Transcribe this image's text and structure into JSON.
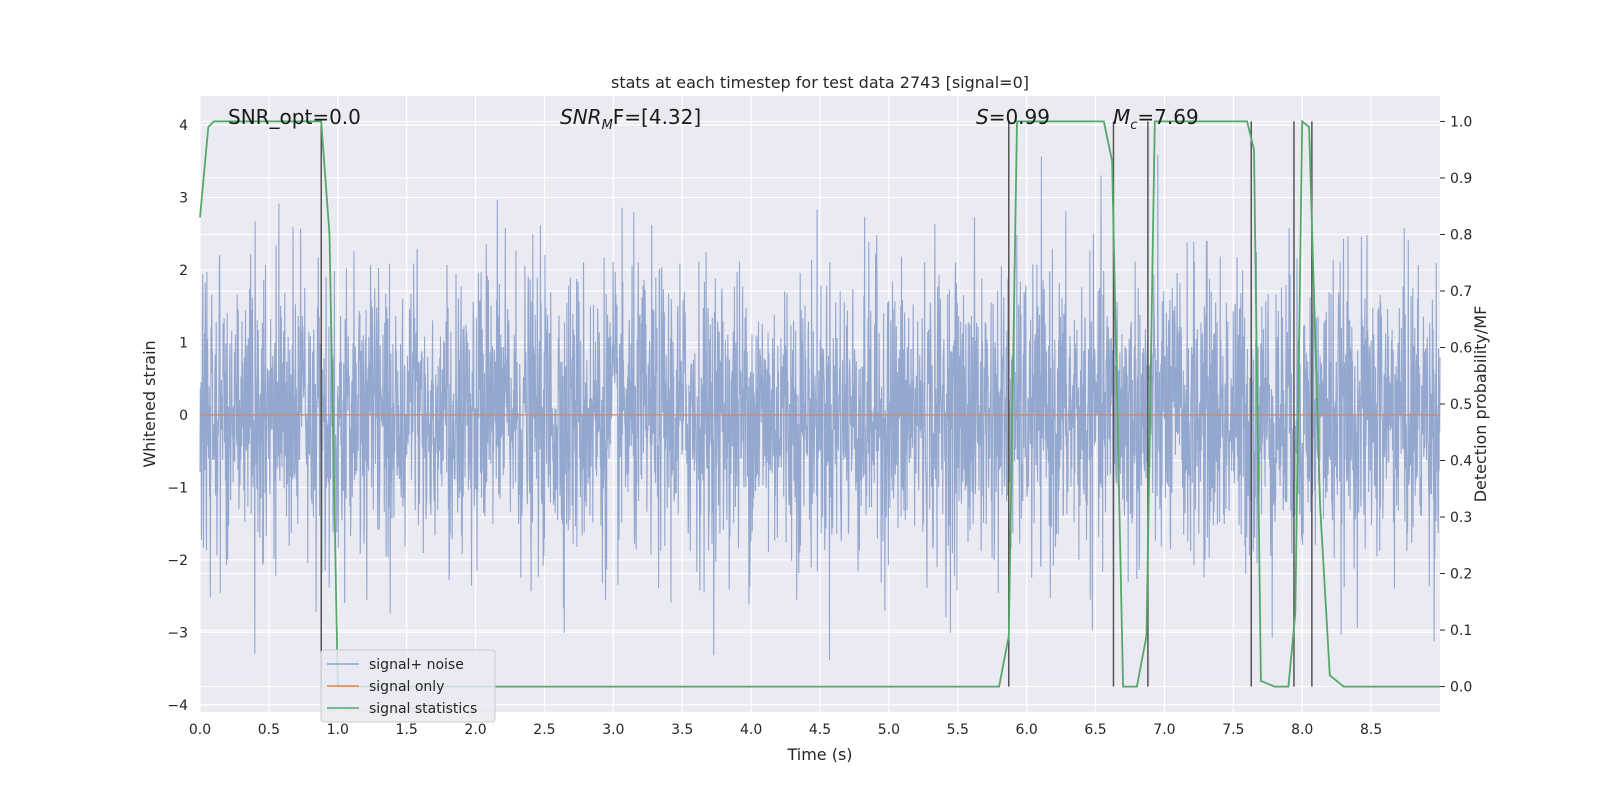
{
  "chart_data": {
    "type": "line",
    "title": "stats at each timestep for test data 2743 [signal=0]",
    "xlabel": "Time (s)",
    "ylabel": "Whitened strain",
    "y2label": "Detection probability/MF",
    "xlim": [
      0.0,
      9.0
    ],
    "ylim": [
      -4.1,
      4.4
    ],
    "y2lim": [
      -0.045,
      1.045
    ],
    "xticks": [
      "0.0",
      "0.5",
      "1.0",
      "1.5",
      "2.0",
      "2.5",
      "3.0",
      "3.5",
      "4.0",
      "4.5",
      "5.0",
      "5.5",
      "6.0",
      "6.5",
      "7.0",
      "7.5",
      "8.0",
      "8.5"
    ],
    "yticks": [
      "4",
      "3",
      "2",
      "1",
      "0",
      "−1",
      "−2",
      "−3",
      "−4"
    ],
    "y2ticks": [
      "1.0",
      "0.9",
      "0.8",
      "0.7",
      "0.6",
      "0.5",
      "0.4",
      "0.3",
      "0.2",
      "0.1",
      "0.0"
    ],
    "grid": true,
    "legend_position": "lower-left",
    "colors": {
      "noise": "#8fa3cc",
      "signal": "#dd8452",
      "stats": "#55a868",
      "vline": "#555555",
      "background": "#eaeaf2",
      "grid": "#ffffff"
    },
    "annotations": {
      "snr_opt": "SNR_opt=0.0",
      "snr_mf_sym": "SNR",
      "snr_mf_sub": "M",
      "snr_mf_rest": "F=[4.32]",
      "s_sym": "S",
      "s_rest": "=0.99",
      "mc_sym": "M",
      "mc_sub": "c",
      "mc_rest": "=7.69"
    },
    "series": [
      {
        "name": "signal+ noise",
        "description": "whitened strain noise, approx. ±1 sigma, with peaks up to about ±4",
        "envelope": {
          "min": -3.7,
          "max": 4.0,
          "sigma": 1.0
        }
      },
      {
        "name": "signal only",
        "x": [
          0.0,
          9.0
        ],
        "y": [
          0.0,
          0.0
        ]
      },
      {
        "name": "signal statistics",
        "axis": "right",
        "x": [
          0.0,
          0.06,
          0.1,
          0.2,
          0.3,
          0.4,
          0.5,
          0.6,
          0.7,
          0.8,
          0.88,
          0.94,
          1.0,
          1.1,
          1.5,
          2.0,
          2.5,
          3.0,
          3.5,
          4.0,
          4.5,
          5.0,
          5.5,
          5.8,
          5.87,
          5.93,
          6.0,
          6.2,
          6.4,
          6.56,
          6.62,
          6.7,
          6.8,
          6.87,
          6.93,
          7.0,
          7.2,
          7.4,
          7.6,
          7.65,
          7.7,
          7.8,
          7.9,
          7.95,
          8.0,
          8.05,
          8.13,
          8.2,
          8.3,
          8.5,
          8.7,
          9.0
        ],
        "y": [
          0.83,
          0.99,
          1.0,
          1.0,
          1.0,
          1.0,
          1.0,
          1.0,
          1.0,
          1.0,
          1.0,
          0.8,
          0.0,
          0.0,
          0.0,
          0.0,
          0.0,
          0.0,
          0.0,
          0.0,
          0.0,
          0.0,
          0.0,
          0.0,
          0.09,
          1.0,
          1.0,
          1.0,
          1.0,
          1.0,
          0.93,
          0.0,
          0.0,
          0.09,
          1.0,
          1.0,
          1.0,
          1.0,
          1.0,
          0.95,
          0.01,
          0.0,
          0.0,
          0.13,
          1.0,
          0.99,
          0.32,
          0.02,
          0.0,
          0.0,
          0.0,
          0.0
        ]
      }
    ],
    "vlines": [
      0.88,
      5.87,
      6.63,
      6.88,
      7.63,
      7.94,
      8.07
    ]
  }
}
